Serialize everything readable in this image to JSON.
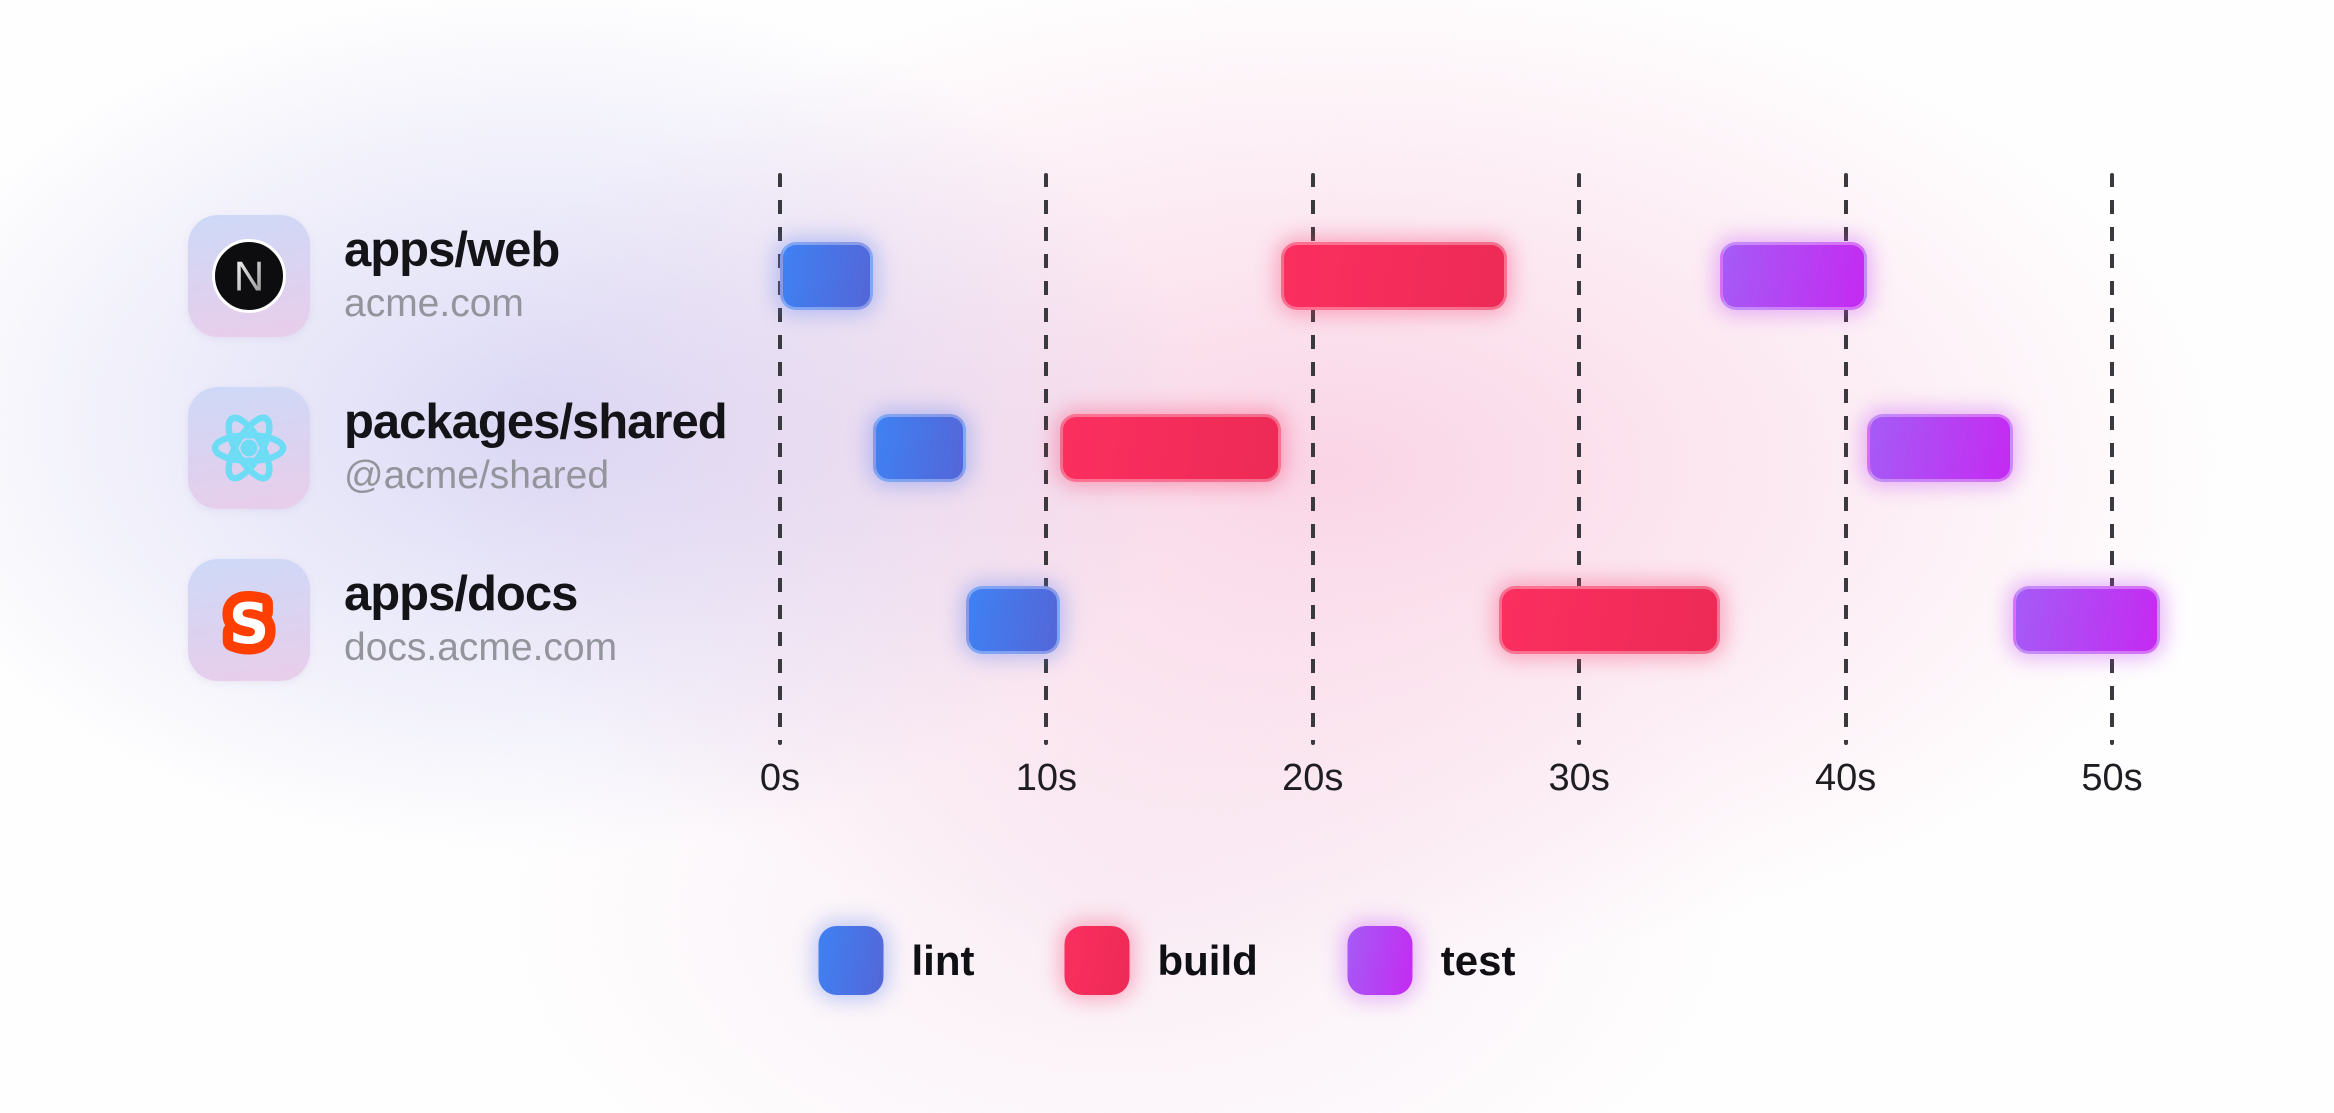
{
  "projects": [
    {
      "name": "apps/web",
      "subtitle": "acme.com",
      "icon": "nextjs-logo"
    },
    {
      "name": "packages/shared",
      "subtitle": "@acme/shared",
      "icon": "react-logo"
    },
    {
      "name": "apps/docs",
      "subtitle": "docs.acme.com",
      "icon": "svelte-logo"
    }
  ],
  "chart_data": {
    "type": "gantt",
    "unit": "seconds",
    "axis_range": [
      0,
      50
    ],
    "tick_values": [
      0,
      10,
      20,
      30,
      40,
      50
    ],
    "tick_labels": [
      "0s",
      "10s",
      "20s",
      "30s",
      "40s",
      "50s"
    ],
    "grid": "dashed-vertical",
    "rows": [
      {
        "project": "apps/web",
        "tasks": [
          {
            "name": "lint",
            "start": 0,
            "end": 3.5
          },
          {
            "name": "build",
            "start": 18.8,
            "end": 27.3
          },
          {
            "name": "test",
            "start": 35.3,
            "end": 40.8
          }
        ]
      },
      {
        "project": "packages/shared",
        "tasks": [
          {
            "name": "lint",
            "start": 3.5,
            "end": 7
          },
          {
            "name": "build",
            "start": 10.5,
            "end": 18.8
          },
          {
            "name": "test",
            "start": 40.8,
            "end": 46.3
          }
        ]
      },
      {
        "project": "apps/docs",
        "tasks": [
          {
            "name": "lint",
            "start": 7,
            "end": 10.5
          },
          {
            "name": "build",
            "start": 27,
            "end": 35.3
          },
          {
            "name": "test",
            "start": 46.3,
            "end": 51.8
          }
        ]
      }
    ],
    "legend": [
      {
        "label": "lint",
        "color": "#3f81f3"
      },
      {
        "label": "build",
        "color": "#fb2f5f"
      },
      {
        "label": "test",
        "color": "#b43df2"
      }
    ],
    "legend_position": "bottom-center"
  },
  "colors": {
    "lint_gradient_from": "#3f81f3",
    "lint_gradient_to": "#5466d8",
    "build_gradient_from": "#fb2f5f",
    "build_gradient_to": "#ed2a56",
    "test_gradient_from": "#a55bf6",
    "test_gradient_to": "#c52af1",
    "react_cyan": "#6fdcf6",
    "svelte_orange": "#ff3e02",
    "nextjs_black": "#0d0d0f",
    "tile_gradient_from": "#cdd9f7",
    "tile_gradient_to": "#e9cdea"
  }
}
